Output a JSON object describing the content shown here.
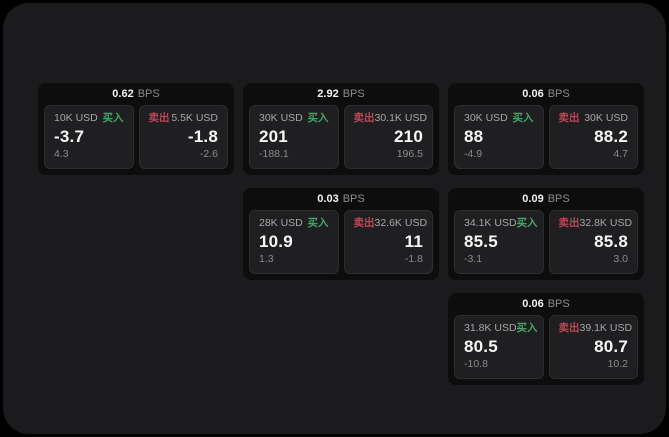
{
  "labels": {
    "buy": "买入",
    "sell": "卖出",
    "bps_unit": "BPS"
  },
  "colors": {
    "buy_green": "#46a368",
    "sell_red": "#bb4757",
    "page_bg": "#000000",
    "panel_bg": "#1b1b1d",
    "card_bg": "#0d0d0e",
    "tile_bg": "#1f1f21"
  },
  "cards": [
    {
      "bps": "0.62",
      "grid": {
        "row": 1,
        "col": 1
      },
      "buy": {
        "amount": "10K USD",
        "value": "-3.7",
        "sub": "4.3"
      },
      "sell": {
        "amount": "5.5K USD",
        "value": "-1.8",
        "sub": "-2.6"
      }
    },
    {
      "bps": "2.92",
      "grid": {
        "row": 1,
        "col": 2
      },
      "buy": {
        "amount": "30K USD",
        "value": "201",
        "sub": "-188.1"
      },
      "sell": {
        "amount": "30.1K USD",
        "value": "210",
        "sub": "196.5"
      }
    },
    {
      "bps": "0.06",
      "grid": {
        "row": 1,
        "col": 3
      },
      "buy": {
        "amount": "30K USD",
        "value": "88",
        "sub": "-4.9"
      },
      "sell": {
        "amount": "30K USD",
        "value": "88.2",
        "sub": "4.7"
      }
    },
    {
      "bps": "0.03",
      "grid": {
        "row": 2,
        "col": 2
      },
      "buy": {
        "amount": "28K USD",
        "value": "10.9",
        "sub": "1.3"
      },
      "sell": {
        "amount": "32.6K USD",
        "value": "11",
        "sub": "-1.8"
      }
    },
    {
      "bps": "0.09",
      "grid": {
        "row": 2,
        "col": 3
      },
      "buy": {
        "amount": "34.1K USD",
        "value": "85.5",
        "sub": "-3.1"
      },
      "sell": {
        "amount": "32.8K USD",
        "value": "85.8",
        "sub": "3.0"
      }
    },
    {
      "bps": "0.06",
      "grid": {
        "row": 3,
        "col": 3
      },
      "buy": {
        "amount": "31.8K USD",
        "value": "80.5",
        "sub": "-10.8"
      },
      "sell": {
        "amount": "39.1K USD",
        "value": "80.7",
        "sub": "10.2"
      }
    }
  ]
}
